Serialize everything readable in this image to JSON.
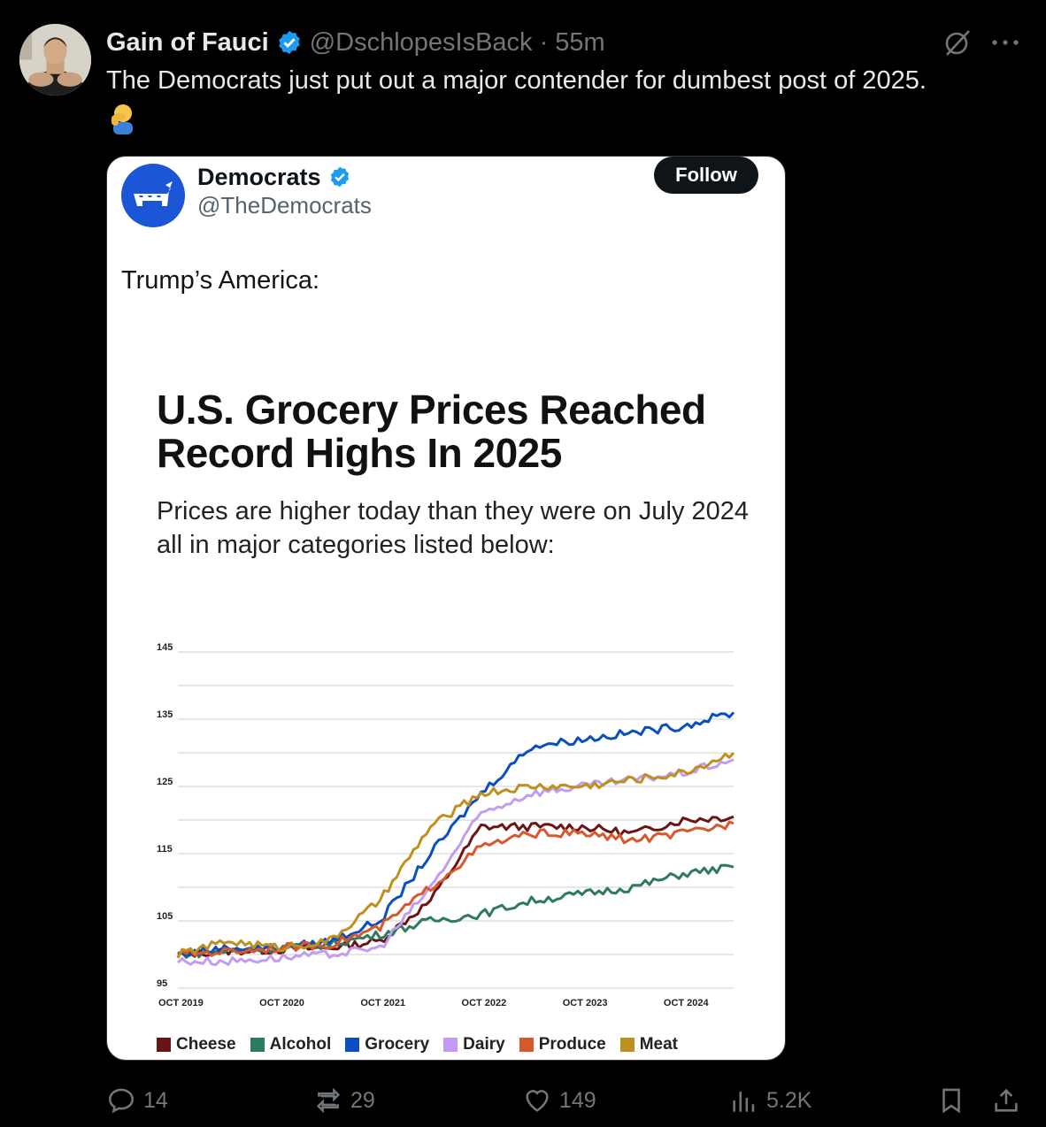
{
  "post": {
    "display_name": "Gain of Fauci",
    "handle": "@DschlopesIsBack",
    "separator": "·",
    "time": "55m",
    "text": "The Democrats just put out a major contender for dumbest post of 2025.",
    "emoji_icon": "man-facepalming-icon"
  },
  "quoted": {
    "name": "Democrats",
    "handle": "@TheDemocrats",
    "follow_label": "Follow",
    "text": "Trump’s America:",
    "chart_title": "U.S. Grocery Prices Reached Record Highs In 2025",
    "chart_subtitle": "Prices are higher today than they were on July 2024 all in major categories listed below:"
  },
  "actions": {
    "replies": "14",
    "reposts": "29",
    "likes": "149",
    "views": "5.2K"
  },
  "colors": {
    "background": "#000000",
    "verified": "#1d9bf0",
    "muted": "#71767b",
    "cheese": "#6b1414",
    "alcohol": "#2e7a5e",
    "grocery": "#0a4fc2",
    "dairy": "#c29cf0",
    "produce": "#d9572c",
    "meat": "#c0901f"
  },
  "chart_data": {
    "type": "line",
    "title": "U.S. Grocery Prices Reached Record Highs In 2025",
    "subtitle": "Prices are higher today than they were on July 2024 all in major categories listed below:",
    "xlabel": "",
    "ylabel": "",
    "x": [
      "2019-10",
      "2020-04",
      "2020-10",
      "2021-04",
      "2021-10",
      "2022-04",
      "2022-10",
      "2023-04",
      "2023-10",
      "2024-04",
      "2024-10",
      "2025-04"
    ],
    "x_ticks": [
      "OCT 2019",
      "OCT 2020",
      "OCT 2021",
      "OCT 2022",
      "OCT 2023",
      "OCT 2024"
    ],
    "y_ticks": [
      95,
      105,
      115,
      125,
      135,
      145
    ],
    "ylim": [
      95,
      145
    ],
    "grid": true,
    "legend_position": "bottom",
    "series": [
      {
        "name": "Cheese",
        "color": "#6b1414",
        "values": [
          100,
          100.5,
          100.7,
          101,
          102,
          108,
          119,
          119,
          119,
          118,
          120,
          120.5
        ]
      },
      {
        "name": "Alcohol",
        "color": "#2e7a5e",
        "values": [
          100,
          100.5,
          101,
          101.5,
          103,
          105,
          106,
          108,
          109,
          110,
          112,
          113
        ]
      },
      {
        "name": "Grocery",
        "color": "#0a4fc2",
        "values": [
          100,
          101,
          101,
          102,
          105,
          115,
          124,
          131,
          132,
          133,
          134,
          136
        ]
      },
      {
        "name": "Dairy",
        "color": "#c29cf0",
        "values": [
          99,
          99,
          99.5,
          100,
          101,
          110,
          121,
          124,
          125,
          126,
          127,
          129
        ]
      },
      {
        "name": "Produce",
        "color": "#d9572c",
        "values": [
          100,
          100.5,
          101,
          101.5,
          104,
          110,
          116,
          118,
          118,
          117,
          118,
          119.5
        ]
      },
      {
        "name": "Meat",
        "color": "#c0901f",
        "values": [
          100,
          102,
          101,
          102,
          108,
          119,
          124,
          125,
          125,
          126,
          127,
          130
        ]
      }
    ]
  }
}
